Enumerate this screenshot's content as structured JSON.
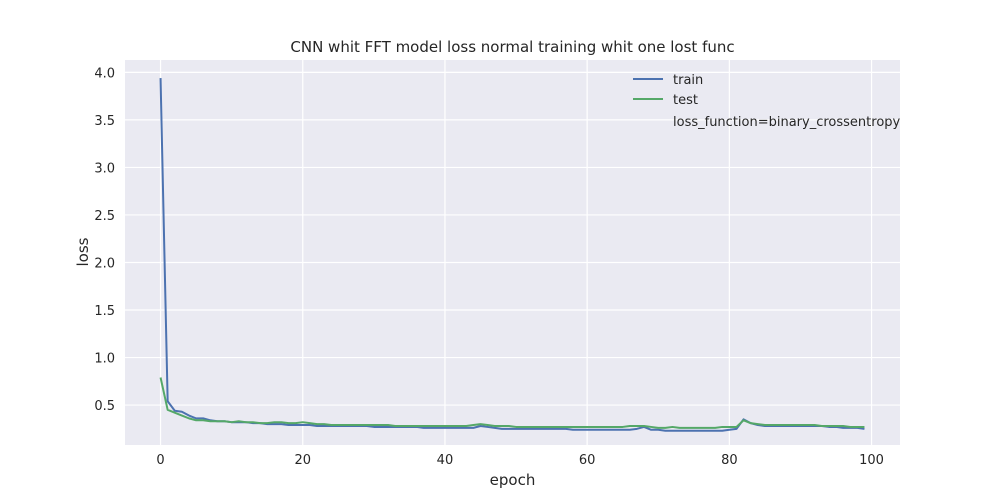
{
  "chart_data": {
    "type": "line",
    "title": "CNN whit FFT model loss normal training whit one lost func",
    "xlabel": "epoch",
    "ylabel": "loss",
    "xlim": [
      -5,
      104
    ],
    "ylim": [
      0.08,
      4.13
    ],
    "xticks": [
      0,
      20,
      40,
      60,
      80,
      100
    ],
    "yticks": [
      0.5,
      1.0,
      1.5,
      2.0,
      2.5,
      3.0,
      3.5,
      4.0
    ],
    "xtick_labels": [
      "0",
      "20",
      "40",
      "60",
      "80",
      "100"
    ],
    "ytick_labels": [
      "0.5",
      "1.0",
      "1.5",
      "2.0",
      "2.5",
      "3.0",
      "3.5",
      "4.0"
    ],
    "grid": true,
    "legend_position": "top-right",
    "legend_extra": "loss_function=binary_crossentropy",
    "series": [
      {
        "name": "train",
        "color": "#4c72b0",
        "values": [
          3.94,
          0.54,
          0.44,
          0.43,
          0.39,
          0.36,
          0.36,
          0.34,
          0.33,
          0.33,
          0.32,
          0.32,
          0.32,
          0.31,
          0.31,
          0.3,
          0.3,
          0.3,
          0.29,
          0.29,
          0.29,
          0.29,
          0.28,
          0.28,
          0.28,
          0.28,
          0.28,
          0.28,
          0.28,
          0.28,
          0.27,
          0.27,
          0.27,
          0.27,
          0.27,
          0.27,
          0.27,
          0.26,
          0.26,
          0.26,
          0.26,
          0.26,
          0.26,
          0.26,
          0.26,
          0.28,
          0.27,
          0.26,
          0.25,
          0.25,
          0.25,
          0.25,
          0.25,
          0.25,
          0.25,
          0.25,
          0.25,
          0.25,
          0.24,
          0.24,
          0.24,
          0.24,
          0.24,
          0.24,
          0.24,
          0.24,
          0.24,
          0.25,
          0.27,
          0.24,
          0.24,
          0.23,
          0.23,
          0.23,
          0.23,
          0.23,
          0.23,
          0.23,
          0.23,
          0.23,
          0.24,
          0.25,
          0.35,
          0.31,
          0.29,
          0.28,
          0.28,
          0.28,
          0.28,
          0.28,
          0.28,
          0.28,
          0.28,
          0.28,
          0.27,
          0.27,
          0.26,
          0.26,
          0.26,
          0.25
        ]
      },
      {
        "name": "test",
        "color": "#55a868",
        "values": [
          0.79,
          0.45,
          0.42,
          0.39,
          0.36,
          0.34,
          0.34,
          0.33,
          0.33,
          0.33,
          0.32,
          0.33,
          0.32,
          0.32,
          0.31,
          0.31,
          0.32,
          0.32,
          0.31,
          0.31,
          0.32,
          0.31,
          0.3,
          0.3,
          0.29,
          0.29,
          0.29,
          0.29,
          0.29,
          0.29,
          0.29,
          0.29,
          0.29,
          0.28,
          0.28,
          0.28,
          0.28,
          0.28,
          0.28,
          0.28,
          0.28,
          0.28,
          0.28,
          0.28,
          0.29,
          0.3,
          0.29,
          0.28,
          0.28,
          0.28,
          0.27,
          0.27,
          0.27,
          0.27,
          0.27,
          0.27,
          0.27,
          0.27,
          0.27,
          0.27,
          0.27,
          0.27,
          0.27,
          0.27,
          0.27,
          0.27,
          0.28,
          0.28,
          0.28,
          0.27,
          0.26,
          0.26,
          0.27,
          0.26,
          0.26,
          0.26,
          0.26,
          0.26,
          0.26,
          0.27,
          0.27,
          0.27,
          0.34,
          0.31,
          0.3,
          0.29,
          0.29,
          0.29,
          0.29,
          0.29,
          0.29,
          0.29,
          0.29,
          0.28,
          0.28,
          0.28,
          0.28,
          0.27,
          0.27,
          0.27
        ]
      }
    ]
  }
}
